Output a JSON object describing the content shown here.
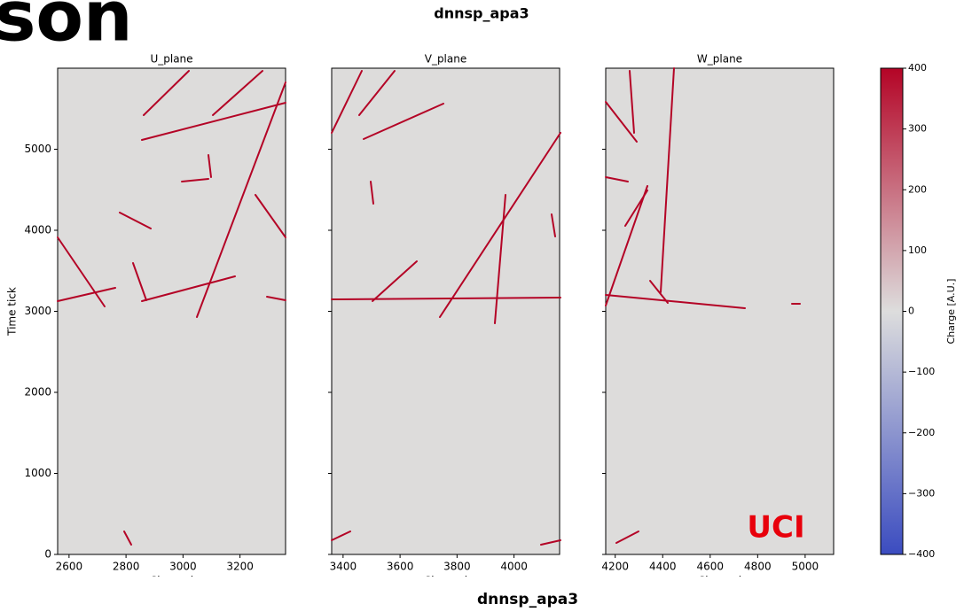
{
  "header": {
    "title": "son",
    "subtitle": "dnnsp_apa3"
  },
  "footer": "dnnsp_apa3",
  "watermark": "UCI",
  "chart_data": [
    {
      "type": "image",
      "title": "U_plane",
      "xlabel": "Channel",
      "ylabel": "Time tick",
      "xlim": [
        2560,
        3360
      ],
      "ylim": [
        0,
        6000
      ],
      "xticks": [
        2600,
        2800,
        3000,
        3200
      ],
      "yticks": [
        0,
        1000,
        2000,
        3000,
        4000,
        5000
      ],
      "background": "#dddcdb"
    },
    {
      "type": "image",
      "title": "V_plane",
      "xlabel": "Channel",
      "xlim": [
        3360,
        4160
      ],
      "ylim": [
        0,
        6000
      ],
      "xticks": [
        3400,
        3600,
        3800,
        4000
      ],
      "yticks": [
        0,
        1000,
        2000,
        3000,
        4000,
        5000
      ],
      "background": "#dddcdb"
    },
    {
      "type": "image",
      "title": "W_plane",
      "xlabel": "Channel",
      "xlim": [
        4160,
        5120
      ],
      "ylim": [
        0,
        6000
      ],
      "xticks": [
        4200,
        4400,
        4600,
        4800,
        5000
      ],
      "yticks": [
        0,
        1000,
        2000,
        3000,
        4000,
        5000
      ],
      "background": "#dddcdb"
    },
    {
      "type": "colorbar",
      "ylabel": "Charge [A.U.]",
      "ylim": [
        -400,
        400
      ],
      "yticks": [
        {
          "value": -400,
          "label": "−400"
        },
        {
          "value": -300,
          "label": "−300"
        },
        {
          "value": -200,
          "label": "−200"
        },
        {
          "value": -100,
          "label": "−100"
        },
        0,
        100,
        200,
        300,
        400
      ],
      "colors": [
        "#3b4cc0",
        "#dddddd",
        "#b40426"
      ]
    }
  ]
}
